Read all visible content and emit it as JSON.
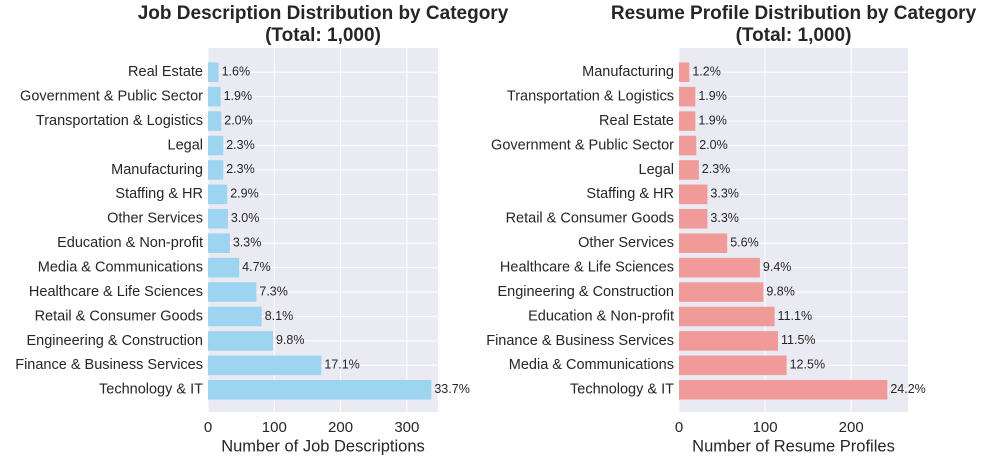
{
  "chart_data": [
    {
      "type": "barh",
      "title": [
        "Job Description Distribution by Category",
        "(Total: 1,000)"
      ],
      "x_label": "Number of Job Descriptions",
      "categories": [
        "Real Estate",
        "Government & Public Sector",
        "Transportation & Logistics",
        "Legal",
        "Manufacturing",
        "Staffing & HR",
        "Other Services",
        "Education & Non-profit",
        "Media & Communications",
        "Healthcare & Life Sciences",
        "Retail & Consumer Goods",
        "Engineering & Construction",
        "Finance & Business Services",
        "Technology & IT"
      ],
      "values": [
        16,
        19,
        20,
        23,
        23,
        29,
        30,
        33,
        47,
        73,
        81,
        98,
        171,
        337
      ],
      "value_labels": [
        "1.6%",
        "1.9%",
        "2.0%",
        "2.3%",
        "2.3%",
        "2.9%",
        "3.0%",
        "3.3%",
        "4.7%",
        "7.3%",
        "8.1%",
        "9.8%",
        "17.1%",
        "33.7%"
      ],
      "color": "#9dd4ef",
      "xlim": [
        0,
        347
      ],
      "xticks": [
        0,
        100,
        200,
        300
      ],
      "grid": true
    },
    {
      "type": "barh",
      "title": [
        "Resume Profile Distribution by Category",
        "(Total: 1,000)"
      ],
      "x_label": "Number of Resume Profiles",
      "categories": [
        "Manufacturing",
        "Transportation & Logistics",
        "Real Estate",
        "Government & Public Sector",
        "Legal",
        "Staffing & HR",
        "Retail & Consumer Goods",
        "Other Services",
        "Healthcare & Life Sciences",
        "Engineering & Construction",
        "Education & Non-profit",
        "Finance & Business Services",
        "Media & Communications",
        "Technology & IT"
      ],
      "values": [
        12,
        19,
        19,
        20,
        23,
        33,
        33,
        56,
        94,
        98,
        111,
        115,
        125,
        242
      ],
      "value_labels": [
        "1.2%",
        "1.9%",
        "1.9%",
        "2.0%",
        "2.3%",
        "3.3%",
        "3.3%",
        "5.6%",
        "9.4%",
        "9.8%",
        "11.1%",
        "11.5%",
        "12.5%",
        "24.2%"
      ],
      "color": "#f09a9a",
      "xlim": [
        0,
        266
      ],
      "xticks": [
        0,
        100,
        200
      ],
      "grid": true
    }
  ]
}
